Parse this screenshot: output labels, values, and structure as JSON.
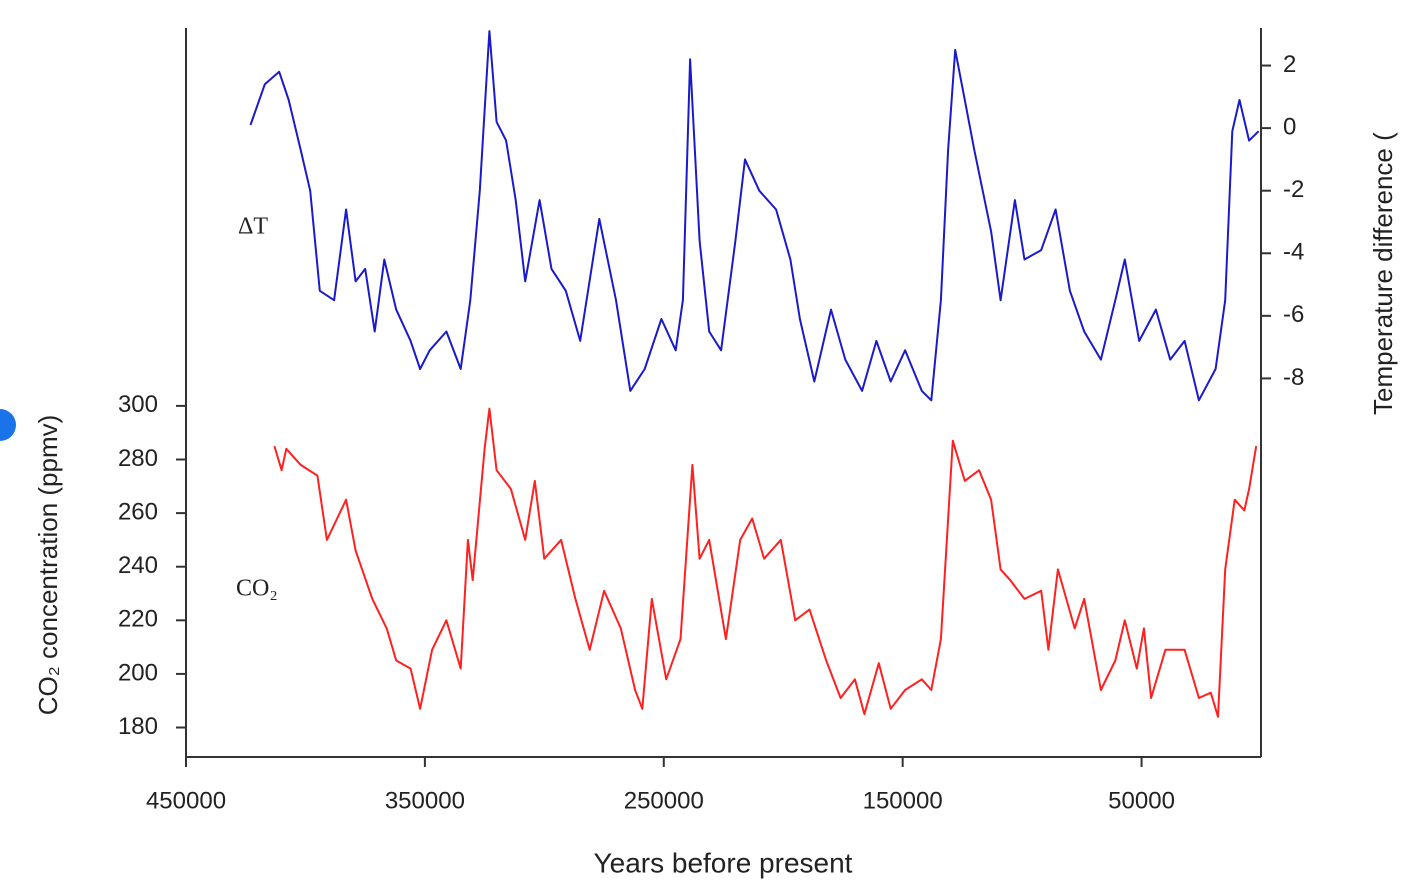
{
  "chart_data": {
    "type": "line",
    "x_label": "Years before present",
    "y_label": "CO₂ concentration (ppmv)",
    "y2_label": "Temperature difference (",
    "annotations": [
      "ΔT",
      "CO₂"
    ],
    "xlim": [
      450000,
      0
    ],
    "xticks": [
      450000,
      350000,
      250000,
      150000,
      50000
    ],
    "ylim": [
      169,
      441
    ],
    "yticks": [
      180,
      200,
      220,
      240,
      260,
      280,
      300
    ],
    "y2lim": [
      -20.1,
      3.2
    ],
    "y2ticks": [
      -8,
      -6,
      -4,
      -2,
      0,
      2
    ],
    "series": [
      {
        "name": "ΔT",
        "color": "#1a1acc",
        "axis": "y2",
        "x": [
          423000,
          417000,
          411000,
          407000,
          402000,
          398000,
          394000,
          388000,
          383000,
          379000,
          375000,
          371000,
          367000,
          362000,
          356000,
          352000,
          348000,
          341000,
          335000,
          331000,
          327000,
          323000,
          320000,
          316000,
          312000,
          308000,
          302000,
          297000,
          291000,
          285000,
          277000,
          270000,
          264000,
          258000,
          251000,
          245000,
          242000,
          239000,
          235000,
          231000,
          226000,
          220000,
          216000,
          210000,
          203000,
          197000,
          193000,
          187000,
          180000,
          174000,
          167000,
          161000,
          155000,
          149000,
          142000,
          138000,
          134000,
          131000,
          128000,
          124000,
          120000,
          113000,
          109000,
          103000,
          99000,
          92000,
          86000,
          80000,
          74000,
          67000,
          61000,
          57000,
          51000,
          44000,
          38000,
          32000,
          26000,
          19000,
          15000,
          12000,
          9000,
          5000,
          1000
        ],
        "values": [
          0.1,
          1.4,
          1.8,
          0.9,
          -0.7,
          -2.0,
          -5.2,
          -5.5,
          -2.6,
          -4.9,
          -4.5,
          -6.5,
          -4.2,
          -5.8,
          -6.8,
          -7.7,
          -7.1,
          -6.5,
          -7.7,
          -5.5,
          -2.0,
          3.1,
          0.2,
          -0.4,
          -2.3,
          -4.9,
          -2.3,
          -4.5,
          -5.2,
          -6.8,
          -2.9,
          -5.5,
          -8.4,
          -7.7,
          -6.1,
          -7.1,
          -5.5,
          2.2,
          -3.6,
          -6.5,
          -7.1,
          -3.6,
          -1.0,
          -2.0,
          -2.6,
          -4.2,
          -6.1,
          -8.1,
          -5.8,
          -7.4,
          -8.4,
          -6.8,
          -8.1,
          -7.1,
          -8.4,
          -8.7,
          -5.5,
          -0.7,
          2.5,
          0.9,
          -0.7,
          -3.3,
          -5.5,
          -2.3,
          -4.2,
          -3.9,
          -2.6,
          -5.2,
          -6.5,
          -7.4,
          -5.5,
          -4.2,
          -6.8,
          -5.8,
          -7.4,
          -6.8,
          -8.7,
          -7.7,
          -5.5,
          -0.1,
          0.9,
          -0.4,
          -0.1
        ]
      },
      {
        "name": "CO₂",
        "color": "#ff2020",
        "axis": "y",
        "x": [
          413000,
          410000,
          408000,
          402000,
          395000,
          391000,
          383000,
          379000,
          372000,
          366000,
          362000,
          356000,
          352000,
          347000,
          341000,
          335000,
          332000,
          330000,
          325000,
          323000,
          320000,
          314000,
          308000,
          304000,
          300000,
          293000,
          287000,
          281000,
          275000,
          268000,
          262000,
          259000,
          255000,
          249000,
          243000,
          238000,
          235000,
          231000,
          224000,
          218000,
          213000,
          208000,
          201000,
          195000,
          189000,
          182000,
          176000,
          170000,
          166000,
          160000,
          155000,
          149000,
          142000,
          138000,
          134000,
          129000,
          124000,
          118000,
          113000,
          109000,
          105000,
          99000,
          92000,
          89000,
          85000,
          78000,
          74000,
          67000,
          61000,
          57000,
          52000,
          49000,
          46000,
          40000,
          32000,
          26000,
          21000,
          18000,
          15000,
          11000,
          7000,
          5000,
          2000
        ],
        "values": [
          285,
          276,
          284,
          278,
          274,
          250,
          265,
          246,
          228,
          217,
          205,
          202,
          187,
          209,
          220,
          202,
          250,
          235,
          284,
          299,
          276,
          269,
          250,
          272,
          243,
          250,
          228,
          209,
          231,
          217,
          194,
          187,
          228,
          198,
          213,
          278,
          243,
          250,
          213,
          250,
          258,
          243,
          250,
          220,
          224,
          205,
          191,
          198,
          185,
          204,
          187,
          194,
          198,
          194,
          213,
          287,
          272,
          276,
          265,
          239,
          235,
          228,
          231,
          209,
          239,
          217,
          228,
          194,
          205,
          220,
          202,
          217,
          191,
          209,
          209,
          191,
          193,
          184,
          239,
          265,
          261,
          269,
          285
        ]
      }
    ]
  }
}
